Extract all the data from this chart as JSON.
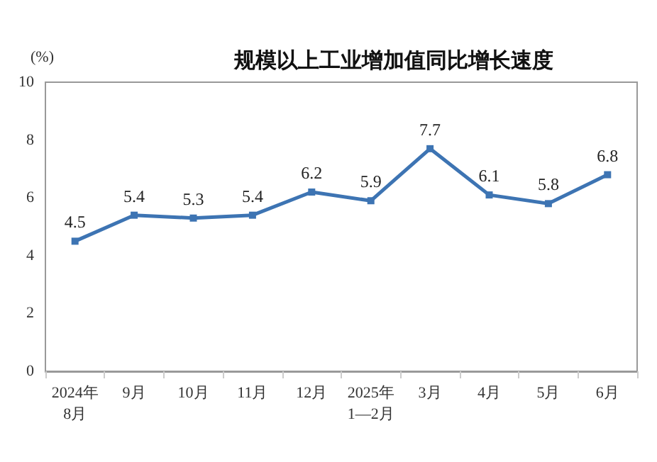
{
  "chart_data": {
    "type": "line",
    "title": "规模以上工业增加值同比增长速度",
    "ylabel": "(%)",
    "categories": [
      "2024年\n8月",
      "9月",
      "10月",
      "11月",
      "12月",
      "2025年\n1—2月",
      "3月",
      "4月",
      "5月",
      "6月"
    ],
    "series": [
      {
        "color": "#3d74b3",
        "values": [
          4.5,
          5.4,
          5.3,
          5.4,
          6.2,
          5.9,
          7.7,
          6.1,
          5.8,
          6.8
        ]
      }
    ],
    "ylim": [
      0,
      10
    ],
    "yticks": [
      0,
      2,
      4,
      6,
      8,
      10
    ],
    "grid": false,
    "data_labels": true,
    "marker": "square",
    "line_style": "solid"
  }
}
